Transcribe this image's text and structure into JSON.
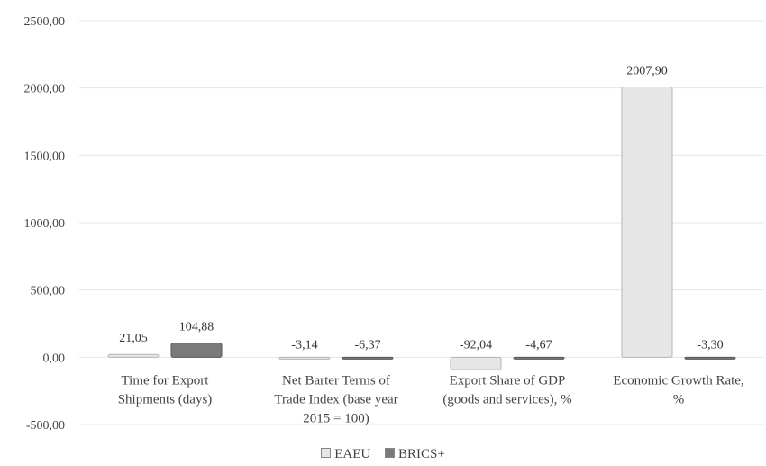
{
  "chart_data": {
    "type": "bar",
    "categories": [
      [
        "Time for Export",
        "Shipments (days)"
      ],
      [
        "Net Barter Terms of",
        "Trade Index (base year",
        "2015 = 100)"
      ],
      [
        "Export Share of GDP",
        "(goods and services), %"
      ],
      [
        "Economic Growth Rate,",
        "%"
      ]
    ],
    "series": [
      {
        "name": "EAEU",
        "values": [
          21.05,
          -3.14,
          -92.04,
          2007.9
        ],
        "labels": [
          "21,05",
          "-3,14",
          "-92,04",
          "2007,90"
        ]
      },
      {
        "name": "BRICS+",
        "values": [
          104.88,
          -6.37,
          -4.67,
          -3.3
        ],
        "labels": [
          "104,88",
          "-6,37",
          "-4,67",
          "-3,30"
        ]
      }
    ],
    "yticks": [
      "-500,00",
      "0,00",
      "500,00",
      "1000,00",
      "1500,00",
      "2000,00",
      "2500,00"
    ],
    "ytick_values": [
      -500,
      0,
      500,
      1000,
      1500,
      2000,
      2500
    ],
    "ylim": [
      -500,
      2500
    ],
    "grid": true,
    "legend_position": "bottom",
    "colors": {
      "EAEU": "#e6e6e6",
      "BRICS+": "#7a7a7a",
      "grid": "#e4e4e4"
    }
  },
  "legend": {
    "eaeu": "EAEU",
    "brics": "BRICS+"
  }
}
